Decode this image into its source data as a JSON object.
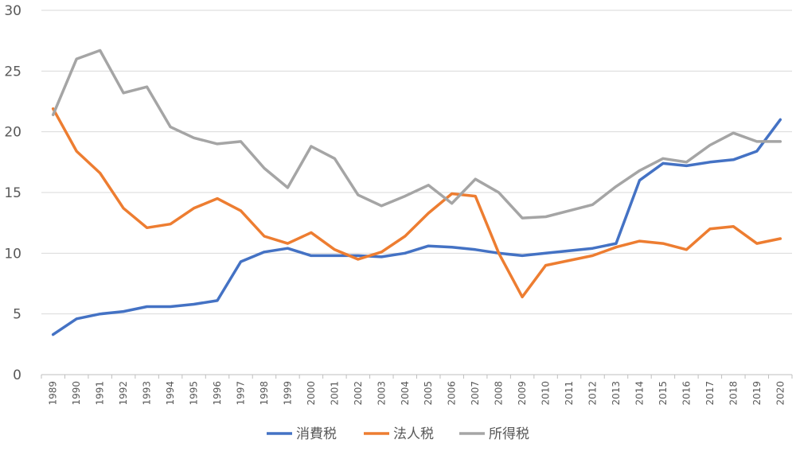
{
  "chart_data": {
    "type": "line",
    "title": "",
    "xlabel": "",
    "ylabel": "",
    "x": [
      1989,
      1990,
      1991,
      1992,
      1993,
      1994,
      1995,
      1996,
      1997,
      1998,
      1999,
      2000,
      2001,
      2002,
      2003,
      2004,
      2005,
      2006,
      2007,
      2008,
      2009,
      2010,
      2011,
      2012,
      2013,
      2014,
      2015,
      2016,
      2017,
      2018,
      2019,
      2020
    ],
    "ylim": [
      0,
      30
    ],
    "yticks": [
      0,
      5,
      10,
      15,
      20,
      25,
      30
    ],
    "grid": true,
    "legend_position": "bottom",
    "series": [
      {
        "name": "消費税",
        "color": "#4472C4",
        "values": [
          3.3,
          4.6,
          5.0,
          5.2,
          5.6,
          5.6,
          5.8,
          6.1,
          9.3,
          10.1,
          10.4,
          9.8,
          9.8,
          9.8,
          9.7,
          10.0,
          10.6,
          10.5,
          10.3,
          10.0,
          9.8,
          10.0,
          10.2,
          10.4,
          10.8,
          16.0,
          17.4,
          17.2,
          17.5,
          17.7,
          18.4,
          21.0
        ]
      },
      {
        "name": "法人税",
        "color": "#ED7D31",
        "values": [
          21.9,
          18.4,
          16.6,
          13.7,
          12.1,
          12.4,
          13.7,
          14.5,
          13.5,
          11.4,
          10.8,
          11.7,
          10.3,
          9.5,
          10.1,
          11.4,
          13.3,
          14.9,
          14.7,
          10.0,
          6.4,
          9.0,
          9.4,
          9.8,
          10.5,
          11.0,
          10.8,
          10.3,
          12.0,
          12.2,
          10.8,
          11.2
        ]
      },
      {
        "name": "所得税",
        "color": "#A5A5A5",
        "values": [
          21.4,
          26.0,
          26.7,
          23.2,
          23.7,
          20.4,
          19.5,
          19.0,
          19.2,
          17.0,
          15.4,
          18.8,
          17.8,
          14.8,
          13.9,
          14.7,
          15.6,
          14.1,
          16.1,
          15.0,
          12.9,
          13.0,
          13.5,
          14.0,
          15.5,
          16.8,
          17.8,
          17.5,
          18.9,
          19.9,
          19.2,
          19.2
        ]
      }
    ]
  }
}
